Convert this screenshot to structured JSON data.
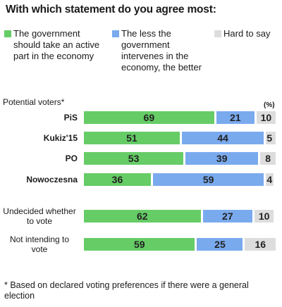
{
  "title": "With which statement do you agree most:",
  "section_label": "Potential voters*",
  "unit": "(%)",
  "footnote": "* Based on declared voting preferences if there were a general election",
  "colors": {
    "government": "#66cc66",
    "less": "#7aaaee",
    "hard": "#dddddd"
  },
  "chart_data": {
    "type": "bar",
    "orientation": "horizontal",
    "stacked": true,
    "categories": [
      "PiS",
      "Kukiz'15",
      "PO",
      "Nowoczesna",
      "Undecided whether to vote",
      "Not intending to vote"
    ],
    "series": [
      {
        "name": "The government should take an active part in the economy",
        "values": [
          69,
          51,
          53,
          36,
          62,
          59
        ]
      },
      {
        "name": "The less the government intervenes in the economy, the better",
        "values": [
          21,
          44,
          39,
          59,
          27,
          25
        ]
      },
      {
        "name": "Hard to say",
        "values": [
          10,
          5,
          8,
          4,
          10,
          16
        ]
      }
    ],
    "xlim": [
      0,
      100
    ],
    "legend": "top"
  }
}
